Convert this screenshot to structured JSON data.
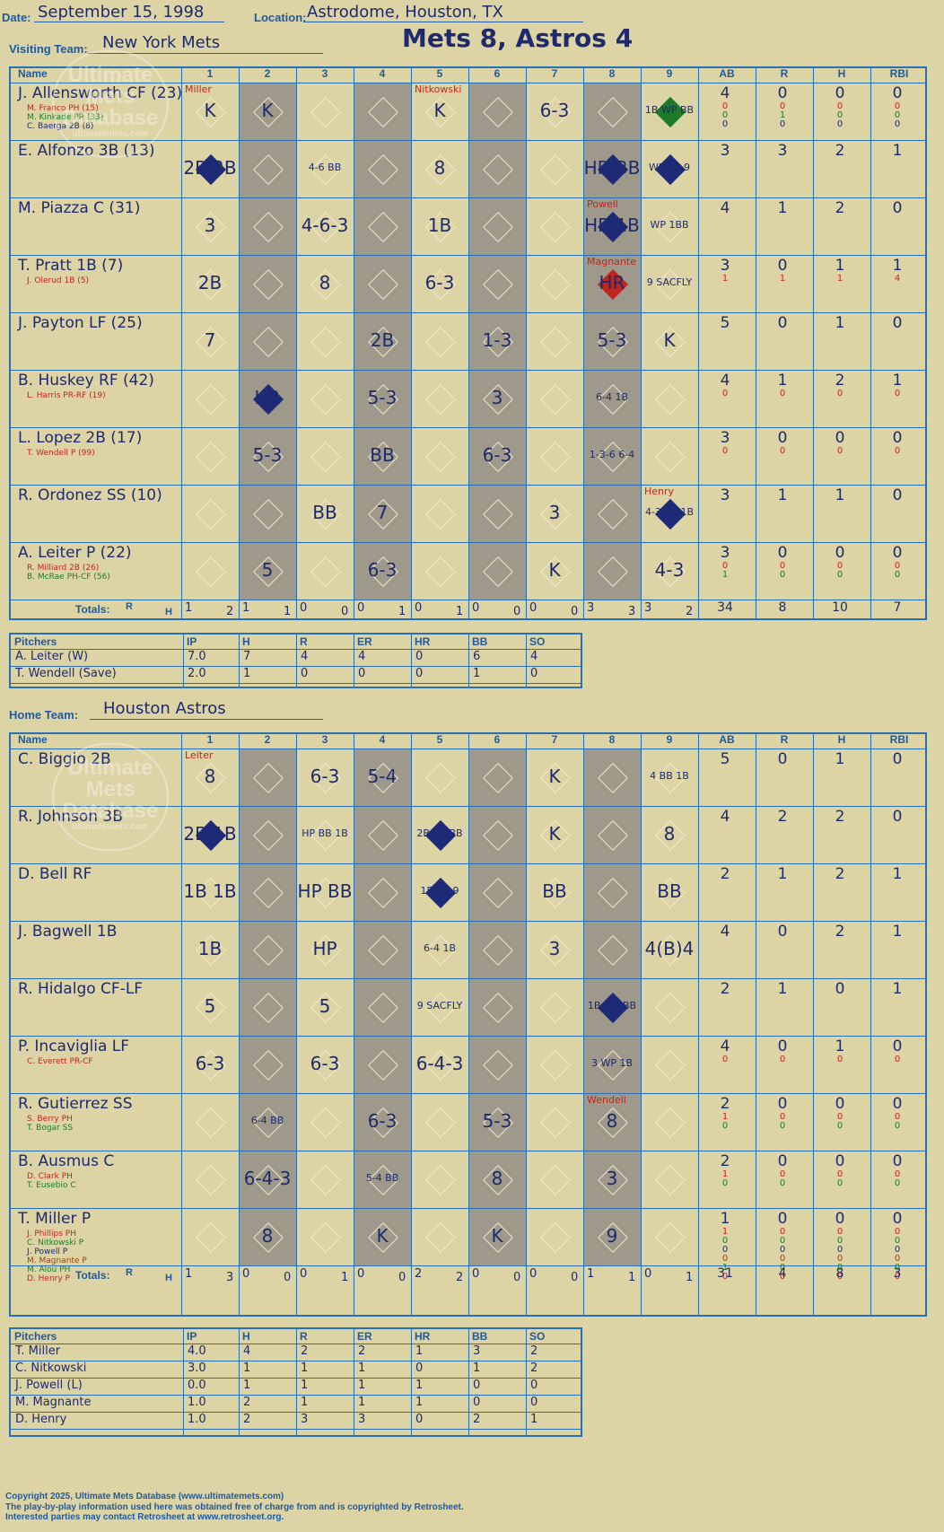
{
  "header": {
    "date_label": "Date:",
    "date": "September 15, 1998",
    "location_label": "Location:",
    "location": "Astrodome, Houston, TX",
    "visiting_label": "Visiting Team:",
    "visiting_team": "New York Mets",
    "result": "Mets 8, Astros 4",
    "home_label": "Home Team:",
    "home_team": "Houston Astros"
  },
  "watermark": [
    "Ultimate",
    "Mets",
    "Database",
    "ultimatemets.com"
  ],
  "columns": {
    "name": "Name",
    "innings": [
      "1",
      "2",
      "3",
      "4",
      "5",
      "6",
      "7",
      "8",
      "9"
    ],
    "stats": [
      "AB",
      "R",
      "H",
      "RBI"
    ],
    "totals": "Totals:",
    "r": "R",
    "h": "H"
  },
  "colors": {
    "background": "#ddd4a6",
    "grid": "#2a70b0",
    "ink": "#1f2a6e",
    "red": "#c0251e",
    "green": "#1e7a2a",
    "shade": "#9e998a",
    "run": "#1f2a6e"
  },
  "visitors": {
    "players": [
      {
        "name": "J. Allensworth CF (23)",
        "subs": [
          {
            "text": "M. Franco PH (15)",
            "color": "red"
          },
          {
            "text": "M. Kinkade PR (33)",
            "color": "green"
          },
          {
            "text": "C. Baerga 2B (8)",
            "color": "dark"
          }
        ],
        "ab": "4",
        "r": "0",
        "h": "0",
        "rbi": "0",
        "sub_stats": [
          [
            "0",
            "0",
            "0",
            "0"
          ],
          [
            "0",
            "1",
            "0",
            "0"
          ],
          [
            "0",
            "0",
            "0",
            "0"
          ]
        ]
      },
      {
        "name": "E. Alfonzo 3B (13)",
        "subs": [],
        "ab": "3",
        "r": "3",
        "h": "2",
        "rbi": "1",
        "sub_stats": []
      },
      {
        "name": "M. Piazza C (31)",
        "subs": [],
        "ab": "4",
        "r": "1",
        "h": "2",
        "rbi": "0",
        "sub_stats": []
      },
      {
        "name": "T. Pratt 1B (7)",
        "subs": [
          {
            "text": "J. Olerud 1B (5)",
            "color": "red"
          }
        ],
        "ab": "3",
        "r": "0",
        "h": "1",
        "rbi": "1",
        "sub_stats": [
          [
            "1",
            "1",
            "1",
            "4"
          ]
        ]
      },
      {
        "name": "J. Payton LF (25)",
        "subs": [],
        "ab": "5",
        "r": "0",
        "h": "1",
        "rbi": "0",
        "sub_stats": []
      },
      {
        "name": "B. Huskey RF (42)",
        "subs": [
          {
            "text": "L. Harris PR-RF (19)",
            "color": "red"
          }
        ],
        "ab": "4",
        "r": "1",
        "h": "2",
        "rbi": "1",
        "sub_stats": [
          [
            "0",
            "0",
            "0",
            "0"
          ]
        ]
      },
      {
        "name": "L. Lopez 2B (17)",
        "subs": [
          {
            "text": "T. Wendell P (99)",
            "color": "red"
          }
        ],
        "ab": "3",
        "r": "0",
        "h": "0",
        "rbi": "0",
        "sub_stats": [
          [
            "0",
            "0",
            "0",
            "0"
          ]
        ]
      },
      {
        "name": "R. Ordonez SS (10)",
        "subs": [],
        "ab": "3",
        "r": "1",
        "h": "1",
        "rbi": "0",
        "sub_stats": []
      },
      {
        "name": "A. Leiter P (22)",
        "subs": [
          {
            "text": "R. Milliard 2B (26)",
            "color": "red"
          },
          {
            "text": "B. McRae PH-CF (56)",
            "color": "green"
          }
        ],
        "ab": "3",
        "r": "0",
        "h": "0",
        "rbi": "0",
        "sub_stats": [
          [
            "0",
            "0",
            "0",
            "0"
          ],
          [
            "1",
            "0",
            "0",
            "0"
          ]
        ]
      }
    ],
    "plays": [
      {
        "row": 0,
        "inn": 1,
        "text": "K"
      },
      {
        "row": 0,
        "inn": 2,
        "text": "K"
      },
      {
        "row": 0,
        "inn": 5,
        "text": "K"
      },
      {
        "row": 0,
        "inn": 7,
        "text": "6-3"
      },
      {
        "row": 0,
        "inn": 9,
        "text": "1B  WP  BB"
      },
      {
        "row": 1,
        "inn": 1,
        "text": "2B 2B"
      },
      {
        "row": 1,
        "inn": 3,
        "text": "4-6 BB"
      },
      {
        "row": 1,
        "inn": 5,
        "text": "8"
      },
      {
        "row": 1,
        "inn": 8,
        "text": "HR BB"
      },
      {
        "row": 1,
        "inn": 9,
        "text": "WP 1B 9"
      },
      {
        "row": 2,
        "inn": 1,
        "text": "3"
      },
      {
        "row": 2,
        "inn": 3,
        "text": "4-6-3"
      },
      {
        "row": 2,
        "inn": 5,
        "text": "1B"
      },
      {
        "row": 2,
        "inn": 8,
        "text": "HR 1B"
      },
      {
        "row": 2,
        "inn": 9,
        "text": "WP 1BB"
      },
      {
        "row": 3,
        "inn": 1,
        "text": "2B"
      },
      {
        "row": 3,
        "inn": 3,
        "text": "8"
      },
      {
        "row": 3,
        "inn": 5,
        "text": "6-3"
      },
      {
        "row": 3,
        "inn": 8,
        "text": "HR"
      },
      {
        "row": 3,
        "inn": 9,
        "text": "9 SACFLY"
      },
      {
        "row": 4,
        "inn": 1,
        "text": "7"
      },
      {
        "row": 4,
        "inn": 4,
        "text": "2B"
      },
      {
        "row": 4,
        "inn": 6,
        "text": "1-3"
      },
      {
        "row": 4,
        "inn": 8,
        "text": "5-3"
      },
      {
        "row": 4,
        "inn": 9,
        "text": "K"
      },
      {
        "row": 5,
        "inn": 2,
        "text": "HR"
      },
      {
        "row": 5,
        "inn": 4,
        "text": "5-3"
      },
      {
        "row": 5,
        "inn": 6,
        "text": "3"
      },
      {
        "row": 5,
        "inn": 8,
        "text": "6-4 1B"
      },
      {
        "row": 6,
        "inn": 2,
        "text": "5-3"
      },
      {
        "row": 6,
        "inn": 4,
        "text": "BB"
      },
      {
        "row": 6,
        "inn": 6,
        "text": "6-3"
      },
      {
        "row": 6,
        "inn": 8,
        "text": "1-3-6 6-4"
      },
      {
        "row": 7,
        "inn": 3,
        "text": "BB"
      },
      {
        "row": 7,
        "inn": 4,
        "text": "7"
      },
      {
        "row": 7,
        "inn": 7,
        "text": "3"
      },
      {
        "row": 7,
        "inn": 9,
        "text": "4-3 1B 1B"
      },
      {
        "row": 8,
        "inn": 2,
        "text": "5"
      },
      {
        "row": 8,
        "inn": 4,
        "text": "6-3"
      },
      {
        "row": 8,
        "inn": 7,
        "text": "K"
      },
      {
        "row": 8,
        "inn": 9,
        "text": "4-3"
      }
    ],
    "runs": [
      {
        "row": 0,
        "inn": 9,
        "color": "green"
      },
      {
        "row": 1,
        "inn": 1
      },
      {
        "row": 1,
        "inn": 8
      },
      {
        "row": 1,
        "inn": 9
      },
      {
        "row": 2,
        "inn": 8
      },
      {
        "row": 3,
        "inn": 8,
        "color": "red"
      },
      {
        "row": 5,
        "inn": 2
      },
      {
        "row": 7,
        "inn": 9
      }
    ],
    "pitcher_marks": [
      {
        "row": 0,
        "inn": 1,
        "text": "Miller"
      },
      {
        "row": 0,
        "inn": 5,
        "text": "Nitkowski"
      },
      {
        "row": 2,
        "inn": 8,
        "text": "Powell"
      },
      {
        "row": 3,
        "inn": 8,
        "text": "Magnante"
      },
      {
        "row": 7,
        "inn": 9,
        "text": "Henry"
      }
    ],
    "totals": {
      "innings": [
        [
          "1",
          "2"
        ],
        [
          "1",
          "1"
        ],
        [
          "0",
          "0"
        ],
        [
          "0",
          "1"
        ],
        [
          "0",
          "1"
        ],
        [
          "0",
          "0"
        ],
        [
          "0",
          "0"
        ],
        [
          "3",
          "3"
        ],
        [
          "3",
          "2"
        ]
      ],
      "ab": "34",
      "r": "8",
      "h": "10",
      "rbi": "7"
    },
    "pitchers": {
      "headers": [
        "Pitchers",
        "IP",
        "H",
        "R",
        "ER",
        "HR",
        "BB",
        "SO"
      ],
      "rows": [
        [
          "A. Leiter (W)",
          "7.0",
          "7",
          "4",
          "4",
          "0",
          "6",
          "4"
        ],
        [
          "T. Wendell (Save)",
          "2.0",
          "1",
          "0",
          "0",
          "0",
          "1",
          "0"
        ]
      ]
    }
  },
  "home": {
    "players": [
      {
        "name": "C. Biggio 2B",
        "subs": [],
        "ab": "5",
        "r": "0",
        "h": "1",
        "rbi": "0",
        "sub_stats": []
      },
      {
        "name": "R. Johnson 3B",
        "subs": [],
        "ab": "4",
        "r": "2",
        "h": "2",
        "rbi": "0",
        "sub_stats": []
      },
      {
        "name": "D. Bell RF",
        "subs": [],
        "ab": "2",
        "r": "1",
        "h": "2",
        "rbi": "1",
        "sub_stats": []
      },
      {
        "name": "J. Bagwell 1B",
        "subs": [],
        "ab": "4",
        "r": "0",
        "h": "2",
        "rbi": "1",
        "sub_stats": []
      },
      {
        "name": "R. Hidalgo CF-LF",
        "subs": [],
        "ab": "2",
        "r": "1",
        "h": "0",
        "rbi": "1",
        "sub_stats": []
      },
      {
        "name": "P. Incaviglia LF",
        "subs": [
          {
            "text": "C. Everett PR-CF",
            "color": "red"
          }
        ],
        "ab": "4",
        "r": "0",
        "h": "1",
        "rbi": "0",
        "sub_stats": [
          [
            "0",
            "0",
            "0",
            "0"
          ]
        ]
      },
      {
        "name": "R. Gutierrez SS",
        "subs": [
          {
            "text": "S. Berry PH",
            "color": "red"
          },
          {
            "text": "T. Bogar SS",
            "color": "green"
          }
        ],
        "ab": "2",
        "r": "0",
        "h": "0",
        "rbi": "0",
        "sub_stats": [
          [
            "1",
            "0",
            "0",
            "0"
          ],
          [
            "0",
            "0",
            "0",
            "0"
          ]
        ]
      },
      {
        "name": "B. Ausmus C",
        "subs": [
          {
            "text": "D. Clark PH",
            "color": "red"
          },
          {
            "text": "T. Eusebio C",
            "color": "green"
          }
        ],
        "ab": "2",
        "r": "0",
        "h": "0",
        "rbi": "0",
        "sub_stats": [
          [
            "1",
            "0",
            "0",
            "0"
          ],
          [
            "0",
            "0",
            "0",
            "0"
          ]
        ]
      },
      {
        "name": "T. Miller P",
        "subs": [
          {
            "text": "J. Phillips PH",
            "color": "red"
          },
          {
            "text": "C. Nitkowski P",
            "color": "green"
          },
          {
            "text": "J. Powell P",
            "color": "dark"
          },
          {
            "text": "M. Magnante P",
            "color": "brown"
          },
          {
            "text": "M. Alou PH",
            "color": "green"
          },
          {
            "text": "D. Henry P",
            "color": "red"
          }
        ],
        "ab": "1",
        "r": "0",
        "h": "0",
        "rbi": "0",
        "sub_stats": [
          [
            "1",
            "0",
            "0",
            "0"
          ],
          [
            "0",
            "0",
            "0",
            "0"
          ],
          [
            "0",
            "0",
            "0",
            "0"
          ],
          [
            "0",
            "0",
            "0",
            "0"
          ],
          [
            "1",
            "0",
            "0",
            "0"
          ],
          [
            "0",
            "0",
            "0",
            "0"
          ]
        ]
      }
    ],
    "plays": [
      {
        "row": 0,
        "inn": 1,
        "text": "8"
      },
      {
        "row": 0,
        "inn": 3,
        "text": "6-3"
      },
      {
        "row": 0,
        "inn": 4,
        "text": "5-4"
      },
      {
        "row": 0,
        "inn": 7,
        "text": "K"
      },
      {
        "row": 0,
        "inn": 9,
        "text": "4 BB 1B"
      },
      {
        "row": 1,
        "inn": 1,
        "text": "2B 1B"
      },
      {
        "row": 1,
        "inn": 3,
        "text": "HP BB 1B"
      },
      {
        "row": 1,
        "inn": 5,
        "text": "2B 1B BB"
      },
      {
        "row": 1,
        "inn": 7,
        "text": "K"
      },
      {
        "row": 1,
        "inn": 9,
        "text": "8"
      },
      {
        "row": 2,
        "inn": 1,
        "text": "1B 1B"
      },
      {
        "row": 2,
        "inn": 3,
        "text": "HP BB"
      },
      {
        "row": 2,
        "inn": 5,
        "text": "1B 2B 9"
      },
      {
        "row": 2,
        "inn": 7,
        "text": "BB"
      },
      {
        "row": 2,
        "inn": 9,
        "text": "BB"
      },
      {
        "row": 3,
        "inn": 1,
        "text": "1B"
      },
      {
        "row": 3,
        "inn": 3,
        "text": "HP"
      },
      {
        "row": 3,
        "inn": 5,
        "text": "6-4 1B"
      },
      {
        "row": 3,
        "inn": 7,
        "text": "3"
      },
      {
        "row": 3,
        "inn": 9,
        "text": "4(B)4"
      },
      {
        "row": 4,
        "inn": 1,
        "text": "5"
      },
      {
        "row": 4,
        "inn": 3,
        "text": "5"
      },
      {
        "row": 4,
        "inn": 5,
        "text": "9 SACFLY"
      },
      {
        "row": 4,
        "inn": 8,
        "text": "1B WP BB"
      },
      {
        "row": 5,
        "inn": 1,
        "text": "6-3"
      },
      {
        "row": 5,
        "inn": 3,
        "text": "6-3"
      },
      {
        "row": 5,
        "inn": 5,
        "text": "6-4-3"
      },
      {
        "row": 5,
        "inn": 8,
        "text": "3 WP 1B"
      },
      {
        "row": 6,
        "inn": 2,
        "text": "6-4 BB"
      },
      {
        "row": 6,
        "inn": 4,
        "text": "6-3"
      },
      {
        "row": 6,
        "inn": 6,
        "text": "5-3"
      },
      {
        "row": 6,
        "inn": 8,
        "text": "8"
      },
      {
        "row": 7,
        "inn": 2,
        "text": "6-4-3"
      },
      {
        "row": 7,
        "inn": 4,
        "text": "5-4 BB"
      },
      {
        "row": 7,
        "inn": 6,
        "text": "8"
      },
      {
        "row": 7,
        "inn": 8,
        "text": "3"
      },
      {
        "row": 8,
        "inn": 2,
        "text": "8"
      },
      {
        "row": 8,
        "inn": 4,
        "text": "K"
      },
      {
        "row": 8,
        "inn": 6,
        "text": "K"
      },
      {
        "row": 8,
        "inn": 8,
        "text": "9"
      }
    ],
    "runs": [
      {
        "row": 1,
        "inn": 1
      },
      {
        "row": 1,
        "inn": 5
      },
      {
        "row": 2,
        "inn": 5
      },
      {
        "row": 4,
        "inn": 8
      }
    ],
    "pitcher_marks": [
      {
        "row": 0,
        "inn": 1,
        "text": "Leiter"
      },
      {
        "row": 6,
        "inn": 8,
        "text": "Wendell"
      }
    ],
    "totals": {
      "innings": [
        [
          "1",
          "3"
        ],
        [
          "0",
          "0"
        ],
        [
          "0",
          "1"
        ],
        [
          "0",
          "0"
        ],
        [
          "2",
          "2"
        ],
        [
          "0",
          "0"
        ],
        [
          "0",
          "0"
        ],
        [
          "1",
          "1"
        ],
        [
          "0",
          "1"
        ]
      ],
      "ab": "31",
      "r": "4",
      "h": "8",
      "rbi": "3"
    },
    "pitchers": {
      "headers": [
        "Pitchers",
        "IP",
        "H",
        "R",
        "ER",
        "HR",
        "BB",
        "SO"
      ],
      "rows": [
        [
          "T. Miller",
          "4.0",
          "4",
          "2",
          "2",
          "1",
          "3",
          "2"
        ],
        [
          "C. Nitkowski",
          "3.0",
          "1",
          "1",
          "1",
          "0",
          "1",
          "2"
        ],
        [
          "J. Powell (L)",
          "0.0",
          "1",
          "1",
          "1",
          "1",
          "0",
          "0"
        ],
        [
          "M. Magnante",
          "1.0",
          "2",
          "1",
          "1",
          "1",
          "0",
          "0"
        ],
        [
          "D. Henry",
          "1.0",
          "2",
          "3",
          "3",
          "0",
          "2",
          "1"
        ]
      ]
    }
  },
  "footer": [
    "Copyright 2025, Ultimate Mets Database (www.ultimatemets.com)",
    "The play-by-play information used here was obtained free of charge from and is copyrighted by Retrosheet.",
    "Interested parties may contact Retrosheet at www.retrosheet.org."
  ]
}
